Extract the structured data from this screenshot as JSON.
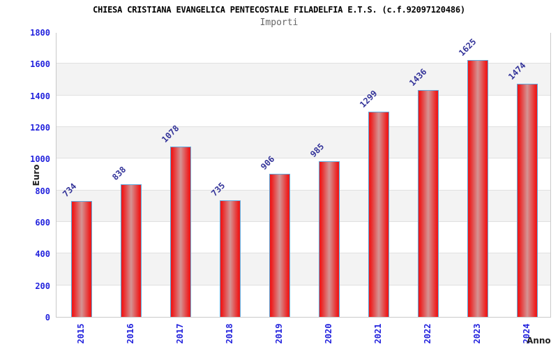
{
  "header": {
    "title": "CHIESA CRISTIANA EVANGELICA PENTECOSTALE FILADELFIA E.T.S. (c.f.92097120486)",
    "subtitle": "Importi"
  },
  "axes": {
    "y_label": "Euro",
    "x_label": "Anno"
  },
  "chart_data": {
    "type": "bar",
    "title": "Importi",
    "categories": [
      "2015",
      "2016",
      "2017",
      "2018",
      "2019",
      "2020",
      "2021",
      "2022",
      "2023",
      "2024"
    ],
    "values": [
      734,
      838,
      1078,
      735,
      906,
      985,
      1299,
      1436,
      1625,
      1474
    ],
    "xlabel": "Anno",
    "ylabel": "Euro",
    "ylim": [
      0,
      1800
    ],
    "ytick_step": 200,
    "yticks": [
      0,
      200,
      400,
      600,
      800,
      1000,
      1200,
      1400,
      1600,
      1800
    ],
    "grid": "alternating-horizontal-bands",
    "legend": "none",
    "colors": {
      "bar_edge": "#ee1c1c",
      "bar_center": "#d49494",
      "bar_border": "#5fa8dc",
      "value_label": "#333399",
      "tick_label": "#2222dd",
      "band_gray": "#f3f3f3",
      "gridline": "#e0e0e0",
      "plot_border": "#c9c9c9",
      "title": "#000000",
      "subtitle": "#666666"
    }
  }
}
